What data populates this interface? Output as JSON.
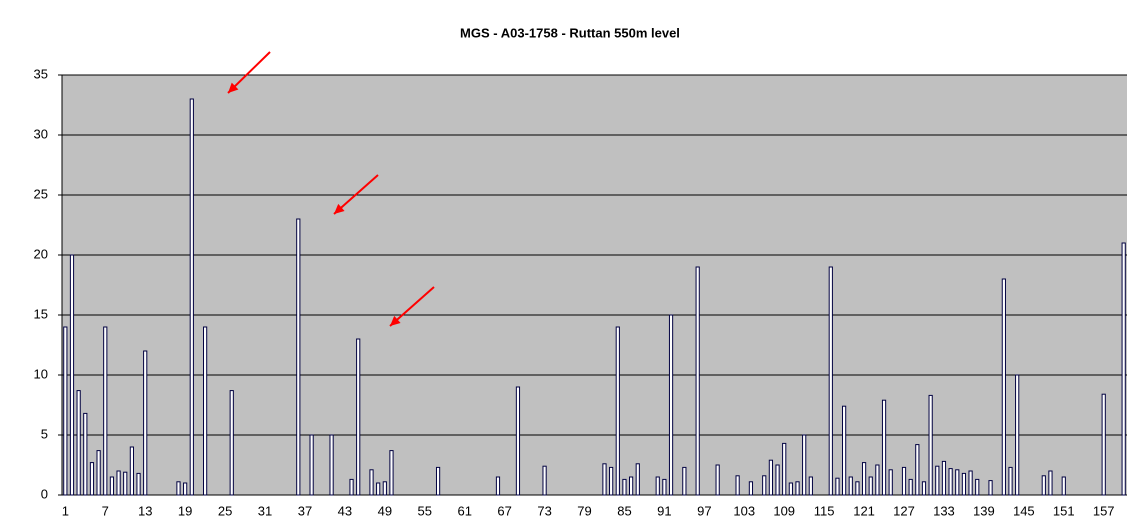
{
  "chart_data": {
    "type": "bar",
    "title": "MGS - A03-1758 - Ruttan 550m level",
    "categories": [
      "1",
      null,
      null,
      null,
      null,
      null,
      "7",
      null,
      null,
      null,
      null,
      null,
      "13",
      null,
      null,
      null,
      null,
      null,
      "19",
      null,
      null,
      null,
      null,
      null,
      "25",
      null,
      null,
      null,
      null,
      null,
      "31",
      null,
      null,
      null,
      null,
      null,
      "37",
      null,
      null,
      null,
      null,
      null,
      "43",
      null,
      null,
      null,
      null,
      null,
      "49",
      null,
      null,
      null,
      null,
      null,
      "55",
      null,
      null,
      null,
      null,
      null,
      "61",
      null,
      null,
      null,
      null,
      null,
      "67",
      null,
      null,
      null,
      null,
      null,
      "73",
      null,
      null,
      null,
      null,
      null,
      "79",
      null,
      null,
      null,
      null,
      null,
      "85",
      null,
      null,
      null,
      null,
      null,
      "91",
      null,
      null,
      null,
      null,
      null,
      "97",
      null,
      null,
      null,
      null,
      null,
      "103",
      null,
      null,
      null,
      null,
      null,
      "109",
      null,
      null,
      null,
      null,
      null,
      "115",
      null,
      null,
      null,
      null,
      null,
      "121",
      null,
      null,
      null,
      null,
      null,
      "127",
      null,
      null,
      null,
      null,
      null,
      "133",
      null,
      null,
      null,
      null,
      null,
      "139",
      null,
      null,
      null,
      null,
      null,
      "145",
      null,
      null,
      null,
      null,
      null,
      "151",
      null,
      null,
      null,
      null,
      null,
      "157",
      null,
      null,
      null
    ],
    "values": [
      14,
      20,
      8.7,
      6.8,
      2.7,
      3.7,
      14,
      1.5,
      2,
      1.9,
      4,
      1.8,
      12,
      0,
      0,
      0,
      0,
      1.1,
      1,
      33,
      0,
      14,
      0,
      0,
      0,
      8.7,
      0,
      0,
      0,
      0,
      0,
      0,
      0,
      0,
      0,
      23,
      0,
      5,
      0,
      0,
      5,
      0,
      0,
      1.3,
      13,
      0,
      2.1,
      1,
      1.1,
      3.7,
      0,
      0,
      0,
      0,
      0,
      0,
      2.3,
      0,
      0,
      0,
      0,
      0,
      0,
      0,
      0,
      1.5,
      0,
      0,
      9,
      0,
      0,
      0,
      2.4,
      0,
      0,
      0,
      0,
      0,
      0,
      0,
      0,
      2.6,
      2.3,
      14,
      1.3,
      1.5,
      2.6,
      0,
      0,
      1.5,
      1.3,
      15,
      0,
      2.3,
      0,
      19,
      0,
      0,
      2.5,
      0,
      0,
      1.6,
      0,
      1.1,
      0,
      1.6,
      2.9,
      2.5,
      4.3,
      1,
      1.1,
      5,
      1.5,
      0,
      0,
      19,
      1.4,
      7.4,
      1.5,
      1.1,
      2.7,
      1.5,
      2.5,
      7.9,
      2.1,
      0,
      2.3,
      1.3,
      4.2,
      1.1,
      8.3,
      2.4,
      2.8,
      2.2,
      2.1,
      1.8,
      2,
      1.3,
      0,
      1.2,
      0,
      18,
      2.3,
      10,
      0,
      0,
      0,
      1.6,
      2,
      0,
      1.5,
      0,
      0,
      0,
      0,
      0,
      8.4,
      0,
      0,
      21
    ],
    "color": "#ffffff",
    "ylim": [
      0,
      35
    ],
    "yticks": [
      0,
      5,
      10,
      15,
      20,
      25,
      30,
      35
    ],
    "grid": true
  }
}
